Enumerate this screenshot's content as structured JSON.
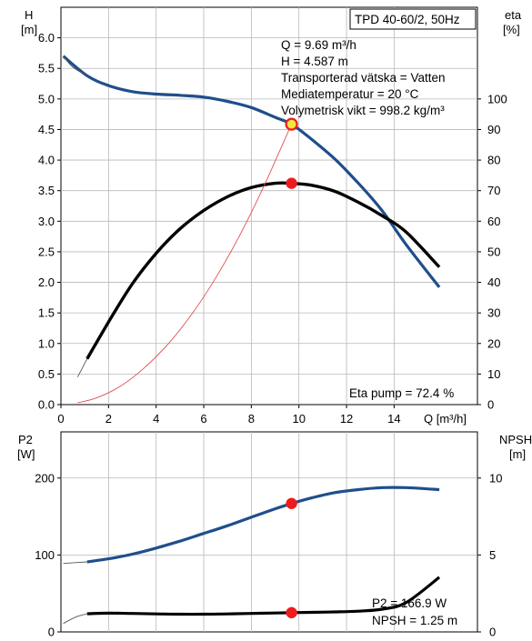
{
  "chart_data": [
    {
      "type": "line",
      "title_box": "TPD 40-60/2, 50Hz",
      "left_axis": {
        "label_line1": "H",
        "label_line2": "[m]",
        "ylim": [
          0,
          6.5
        ],
        "ticks": [
          "0.0",
          "0.5",
          "1.0",
          "1.5",
          "2.0",
          "2.5",
          "3.0",
          "3.5",
          "4.0",
          "4.5",
          "5.0",
          "5.5",
          "6.0"
        ]
      },
      "right_axis": {
        "label_line1": "eta",
        "label_line2": "[%]",
        "ylim": [
          0,
          130
        ],
        "ticks": [
          "0",
          "10",
          "20",
          "30",
          "40",
          "50",
          "60",
          "70",
          "80",
          "90",
          "100"
        ]
      },
      "x_axis": {
        "label": "Q [m³/h]",
        "xlim": [
          0,
          17.5
        ],
        "ticks": [
          "0",
          "2",
          "4",
          "6",
          "8",
          "10",
          "12",
          "14"
        ]
      },
      "info_lines": [
        "Q = 9.69 m³/h",
        "H = 4.587 m",
        "Transporterad vätska = Vatten",
        "Mediatemperatur = 20 °C",
        "Volymetrisk vikt = 998.2 kg/m³"
      ],
      "bottom_note": "Eta pump = 72.4 %",
      "colors": {
        "head": "#1f4e8c",
        "eta": "#000000",
        "system": "#e05050",
        "marker": "#ee1c1c",
        "op_point": "#f5e642"
      },
      "series": [
        {
          "key": "head",
          "axis": "left",
          "x": [
            0.1,
            1.1,
            2,
            3,
            4,
            5,
            6,
            7,
            8,
            9,
            9.69,
            10.5,
            11.5,
            12.5,
            13.5,
            14.5,
            15.9
          ],
          "y": [
            5.7,
            5.38,
            5.22,
            5.12,
            5.08,
            5.06,
            5.03,
            4.96,
            4.86,
            4.7,
            4.587,
            4.35,
            4.02,
            3.62,
            3.17,
            2.62,
            1.92
          ]
        },
        {
          "key": "eta",
          "axis": "right",
          "x": [
            1.1,
            2,
            3,
            4,
            5,
            6,
            7,
            8,
            9,
            9.69,
            10.5,
            11.5,
            12.5,
            13.5,
            14.5,
            15.9
          ],
          "y": [
            15,
            27,
            39.5,
            49.5,
            57.5,
            63.5,
            68,
            71,
            72.4,
            72.4,
            71.8,
            69.8,
            66.2,
            61.8,
            56.5,
            45
          ]
        },
        {
          "key": "system",
          "axis": "left",
          "x": [
            0.7,
            1.5,
            2.5,
            3.5,
            4.5,
            5.5,
            6.5,
            7.5,
            8.5,
            9.69
          ],
          "y": [
            0.03,
            0.11,
            0.3,
            0.6,
            0.99,
            1.48,
            2.07,
            2.76,
            3.55,
            4.587
          ]
        },
        {
          "key": "head_ext",
          "axis": "left",
          "x": [
            0.1,
            0.5,
            1.1
          ],
          "y": [
            5.7,
            5.52,
            5.38
          ]
        },
        {
          "key": "eta_ext",
          "axis": "right",
          "x": [
            0.7,
            0.9,
            1.1
          ],
          "y": [
            9,
            12,
            15
          ]
        }
      ],
      "points": [
        {
          "x": 9.69,
          "y": 72.4,
          "axis": "right",
          "kind": "marker"
        },
        {
          "x": 9.69,
          "y": 4.587,
          "axis": "left",
          "kind": "op_point"
        }
      ]
    },
    {
      "type": "line",
      "left_axis": {
        "label_line1": "P2",
        "label_line2": "[W]",
        "ylim": [
          0,
          260
        ],
        "ticks": [
          "0",
          "100",
          "200"
        ],
        "tick_values": [
          0,
          100,
          200
        ]
      },
      "right_axis": {
        "label_line1": "NPSH",
        "label_line2": "[m]",
        "ylim": [
          0,
          13
        ],
        "ticks": [
          "0",
          "5",
          "10"
        ],
        "tick_values": [
          0,
          5,
          10
        ]
      },
      "info_lines": [
        "P2 = 166.9 W",
        "NPSH = 1.25 m"
      ],
      "series": [
        {
          "key": "p2",
          "axis": "left",
          "x": [
            1.1,
            2,
            3,
            4,
            5,
            6,
            7,
            8,
            9,
            9.69,
            10.5,
            11.5,
            12.5,
            13.5,
            14.5,
            15.9
          ],
          "y": [
            91,
            95,
            101,
            109,
            118,
            128,
            138,
            149,
            160,
            166.9,
            174,
            181,
            185,
            187.5,
            187.5,
            185
          ]
        },
        {
          "key": "p2_ext",
          "axis": "left",
          "x": [
            0.1,
            1.1
          ],
          "y": [
            89,
            91
          ]
        },
        {
          "key": "npsh",
          "axis": "right",
          "x": [
            1.1,
            2,
            3,
            4,
            5,
            6,
            7,
            8,
            9,
            9.69,
            10.5,
            11.5,
            12.5,
            13.5,
            14.5,
            15.9
          ],
          "y": [
            1.18,
            1.22,
            1.2,
            1.17,
            1.15,
            1.15,
            1.17,
            1.2,
            1.23,
            1.25,
            1.27,
            1.3,
            1.35,
            1.48,
            1.9,
            3.55
          ]
        },
        {
          "key": "npsh_ext",
          "axis": "right",
          "x": [
            0.1,
            0.6,
            1.1
          ],
          "y": [
            0.55,
            0.95,
            1.18
          ]
        }
      ],
      "points": [
        {
          "x": 9.69,
          "y": 166.9,
          "axis": "left",
          "kind": "marker"
        },
        {
          "x": 9.69,
          "y": 1.25,
          "axis": "right",
          "kind": "marker"
        }
      ]
    }
  ]
}
